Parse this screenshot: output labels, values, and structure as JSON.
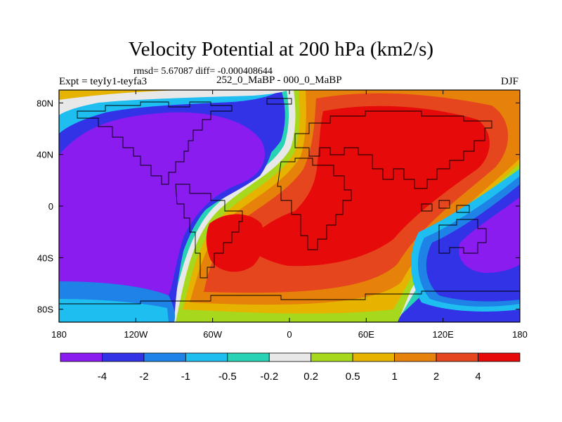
{
  "chart_data": {
    "type": "heatmap",
    "title": "Velocity Potential at 200 hPa (km2/s)",
    "stats_label": "rmsd= 5.67087 diff= -0.000408644",
    "experiment_label": "Expt = teyIy1-teyfa3",
    "period_label": "252_0_MaBP - 000_0_MaBP",
    "season_label": "DJF",
    "x_ticks": [
      {
        "value": -180,
        "label": "180"
      },
      {
        "value": -120,
        "label": "120W"
      },
      {
        "value": -60,
        "label": "60W"
      },
      {
        "value": 0,
        "label": "0"
      },
      {
        "value": 60,
        "label": "60E"
      },
      {
        "value": 120,
        "label": "120E"
      },
      {
        "value": 180,
        "label": "180"
      }
    ],
    "y_ticks": [
      {
        "value": 80,
        "label": "80N"
      },
      {
        "value": 40,
        "label": "40N"
      },
      {
        "value": 0,
        "label": "0"
      },
      {
        "value": -40,
        "label": "40S"
      },
      {
        "value": -80,
        "label": "80S"
      }
    ],
    "xlim": [
      -180,
      180
    ],
    "ylim": [
      -90,
      90
    ],
    "colorbar": {
      "labels": [
        "-4",
        "-2",
        "-1",
        "-0.5",
        "-0.2",
        "0.2",
        "0.5",
        "1",
        "2",
        "4"
      ],
      "colors": [
        "#8a1cf0",
        "#3232e6",
        "#1e82e6",
        "#1ebef0",
        "#28d2b4",
        "#e8e8e8",
        "#a6d81e",
        "#e6b400",
        "#e6820a",
        "#e6461e",
        "#e60a0a"
      ]
    }
  }
}
